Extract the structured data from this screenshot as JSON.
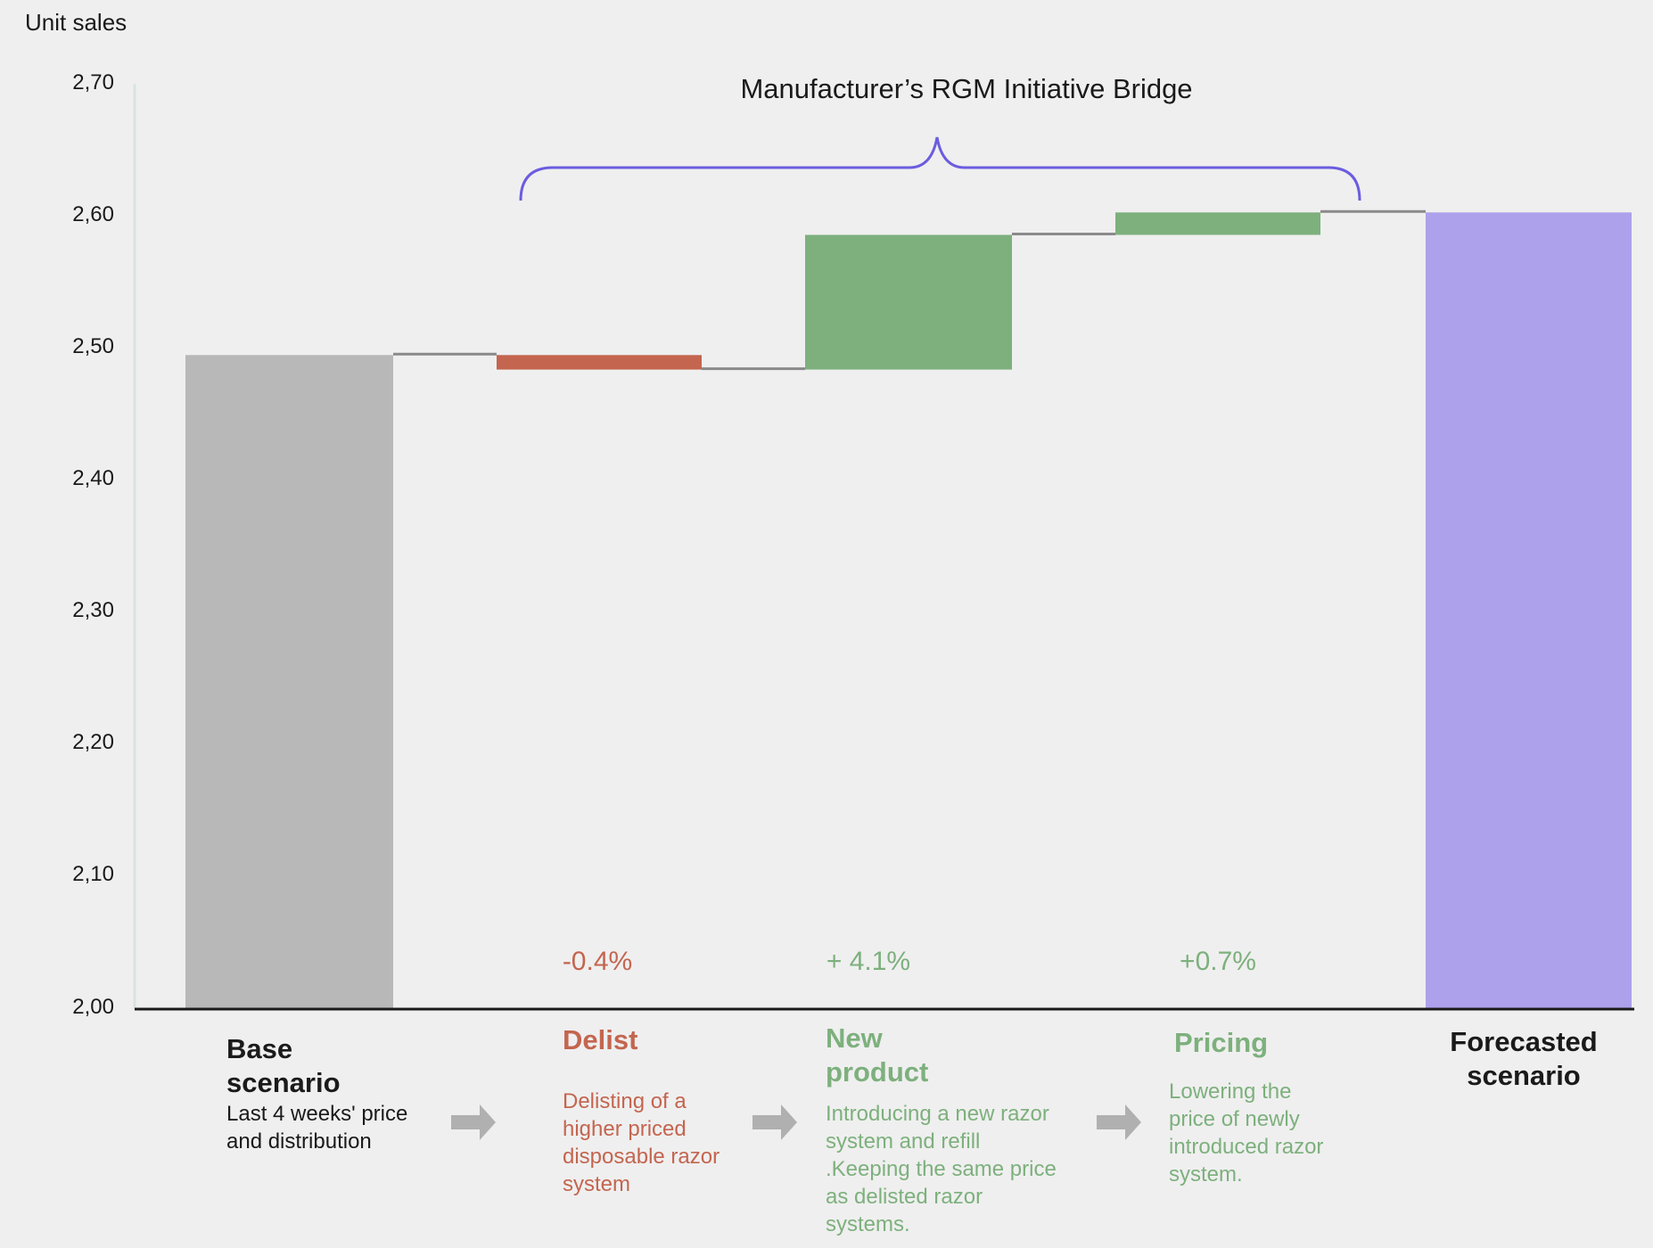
{
  "chart_data": {
    "type": "waterfall",
    "title": "Manufacturer’s RGM Initiative Bridge",
    "ylabel": "Unit sales",
    "ylim": [
      2.0,
      2.7
    ],
    "yticks": [
      "2,00",
      "2,10",
      "2,20",
      "2,30",
      "2,40",
      "2,50",
      "2,60",
      "2,70"
    ],
    "grid": false,
    "bars": [
      {
        "name": "Base scenario",
        "kind": "total",
        "start": 2.0,
        "end": 2.495,
        "color": "#b7b8b7"
      },
      {
        "name": "Delist",
        "kind": "delta",
        "start": 2.495,
        "end": 2.484,
        "color": "#c4654f",
        "label": "-0.4%"
      },
      {
        "name": "New product",
        "kind": "delta",
        "start": 2.484,
        "end": 2.586,
        "color": "#7db07d",
        "label": "+ 4.1%"
      },
      {
        "name": "Pricing",
        "kind": "delta",
        "start": 2.586,
        "end": 2.603,
        "color": "#7db07d",
        "label": "+0.7%"
      },
      {
        "name": "Forecasted scenario",
        "kind": "total",
        "start": 2.0,
        "end": 2.603,
        "color": "#ada1ec"
      }
    ],
    "brace_color": "#6b5ce0"
  },
  "categories": {
    "base": {
      "title1": "Base",
      "title2": "scenario",
      "desc": [
        "Last 4 weeks' price",
        "and distribution"
      ]
    },
    "delist": {
      "title": "Delist",
      "desc": [
        "Delisting of a",
        "higher priced",
        "disposable razor",
        "system"
      ]
    },
    "new_product": {
      "title1": "New",
      "title2": "product",
      "desc": [
        "Introducing  a new razor",
        "system and refill",
        ".Keeping the same price",
        "as delisted razor",
        "systems."
      ]
    },
    "pricing": {
      "title": "Pricing",
      "desc": [
        "Lowering the",
        "price of newly",
        "introduced razor",
        "system."
      ]
    },
    "forecast": {
      "title1": "Forecasted",
      "title2": "scenario"
    }
  }
}
